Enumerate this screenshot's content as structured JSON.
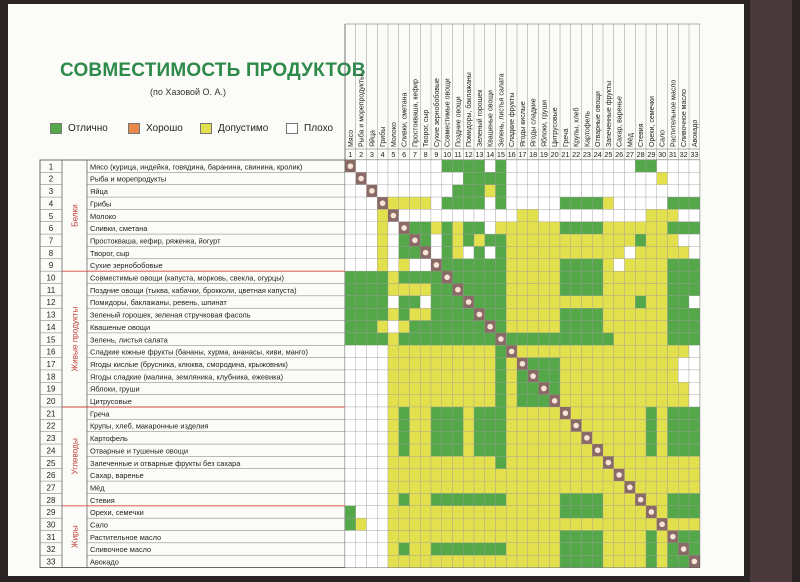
{
  "title": "СОВМЕСТИМОСТЬ ПРОДУКТОВ",
  "subtitle": "(по Хазовой О. А.)",
  "legend": [
    {
      "label": "Отлично",
      "color": "#55a84a"
    },
    {
      "label": "Хорошо",
      "color": "#e8894a"
    },
    {
      "label": "Допустимо",
      "color": "#e3e04e"
    },
    {
      "label": "Плохо",
      "color": "#ffffff"
    }
  ],
  "groups": [
    {
      "label": "Белки",
      "from": 1,
      "to": 9
    },
    {
      "label": "Живые продукты",
      "from": 10,
      "to": 20
    },
    {
      "label": "Углеводы",
      "from": 21,
      "to": 28
    },
    {
      "label": "Жиры",
      "from": 29,
      "to": 33
    }
  ],
  "rows": [
    "Мясо (курица, индейка, говядина, баранина, свинина, кролик)",
    "Рыба и морепродукты",
    "Яйца",
    "Грибы",
    "Молоко",
    "Сливки, сметана",
    "Простокваша, кефир, ряженка, йогурт",
    "Творог, сыр",
    "Сухие зернобобовые",
    "Совместимые овощи (капуста, морковь, свекла, огурцы)",
    "Поздние овощи (тыква, кабачки, брокколи, цветная капуста)",
    "Помидоры, баклажаны, ревень, шпинат",
    "Зеленый горошек, зеленая стручковая фасоль",
    "Квашеные овощи",
    "Зелень, листья салата",
    "Сладкие южные фрукты (бананы, хурма, ананасы, киви, манго)",
    "Ягоды кислые (брусника, клюква, смородина, крыжовник)",
    "Ягоды сладкие (малина, земляника, клубника, ежевика)",
    "Яблоки, груши",
    "Цитрусовые",
    "Греча",
    "Крупы, хлеб, макаронные изделия",
    "Картофель",
    "Отварные и тушеные овощи",
    "Запеченные и отварные фрукты без сахара",
    "Сахар, варенье",
    "Мёд",
    "Стевия",
    "Орехи, семечки",
    "Сало",
    "Растительное масло",
    "Сливочное масло",
    "Авокадо"
  ],
  "columns": [
    "Мясо",
    "Рыба и морепродукты",
    "Яйца",
    "Грибы",
    "Молоко",
    "Сливки, сметана",
    "Простокваша, кефир",
    "Творог, сыр",
    "Сухие зернобобовые",
    "Совместимые овощи",
    "Поздние овощи",
    "Помидоры, баклажаны",
    "Зеленый горошек",
    "Квашеные овощи",
    "Зелень, листья салата",
    "Сладкие фрукты",
    "Ягоды кислые",
    "Ягоды сладкие",
    "Яблоки, груши",
    "Цитрусовые",
    "Греча",
    "Крупы, хлеб",
    "Картофель",
    "Отварные овощи",
    "Запеченные фрукты",
    "Сахар, варенье",
    "Мёд",
    "Стевия",
    "Орехи, семечки",
    "Сало",
    "Растительное масло",
    "Сливочное масло",
    "Авокадо"
  ],
  "matrix": [
    "X00000000GGGG0G000000000000GG0000",
    "0X000000000GGGG00000000000000Y000",
    "00X0000000GGGYG000000000000000000",
    "000XYYYY0GGGG0G00000GGGGY00000GGG",
    "000YX00000000000YY0000000000YYY00",
    "000Y0XGGYGYGG0YYYYYYGGGGYYYYYYGGG",
    "000Y0GXG0GYGYGGYYYYYYYYYYYYGYYY00",
    "000Y0GGX0GY0G0GYYYYYYYYYYY0YYYYY0",
    "000Y0Y00XGGGGGGYYYYYGGGGY0YYYYGGG",
    "GGGGYGGGGXGGGGGYYYYYGGGGYYYYYYGGG",
    "GGGGYYYYGGXGGGGYYYYYGGGGYYYYYYGGG",
    "GGGG0GG0GGGXGGGYYYYYYYYYYYYGYYGG0",
    "GGGGYGYYGGGGXGGYYYYYGGGGYYYYYYGGG",
    "GGGY0YGGGGGGGXGYYYYYGGGGYYYYYYGGG",
    "GGGGYGGGGGGGGGXGGGGGGGGGGYYYYYGGG",
    "0000YYYYYYYYYYGXYYYYYYYYYYYYYYYY0",
    "0000YYYYYYYYYYGYXGGGYYYYYYYYYYY00",
    "0000YYYYYYYYYYGYGXGGYYYYYYYYYYY00",
    "0000YYYYYYYYYYGYGGXGYYYYYYYYYYYY0",
    "0000YYYYYYYYYYGYGGGXYYYYYYYYYYYY0",
    "0000YGYYGGGYGGGYYYYYXYYYYYYYGYGGG",
    "0000YGYYGGGYGGGYYYYYYXYYYYYYGYGGG",
    "0000YGYYGGGYGGGYYYYYYYXYYYYYGYGGG",
    "0000YGYYGGGYGGGYYYYYYYYXYYYYGYGGG",
    "0000YYYYYYYYYYGYYYYYYYYYXYYYYYYYY",
    "0000YYYYYYYYYYYYYYYYYYYYYXYYYYYYY",
    "0000YYYYYYYYYYYYYYYYYYYYYYXYYYYYY",
    "0000YGYYGGGGGGGYYYYYGGGGYYYXYYGGG",
    "G000YYYYYYYYYYYYYYYYGGGGYYYYXYGGG",
    "GY00YYYYYYYYYYYYYYYYYYYYYYYYYXYYY",
    "0000YYYYYYYYYYYYYYYYGGGGYYYYGYXGG",
    "0000YGYYGGGGGGGYYYYYGGGGYYYYGYGXG",
    "0000YYYYYYYYYYYYYYYYGGGGYYYYGYGGX"
  ]
}
